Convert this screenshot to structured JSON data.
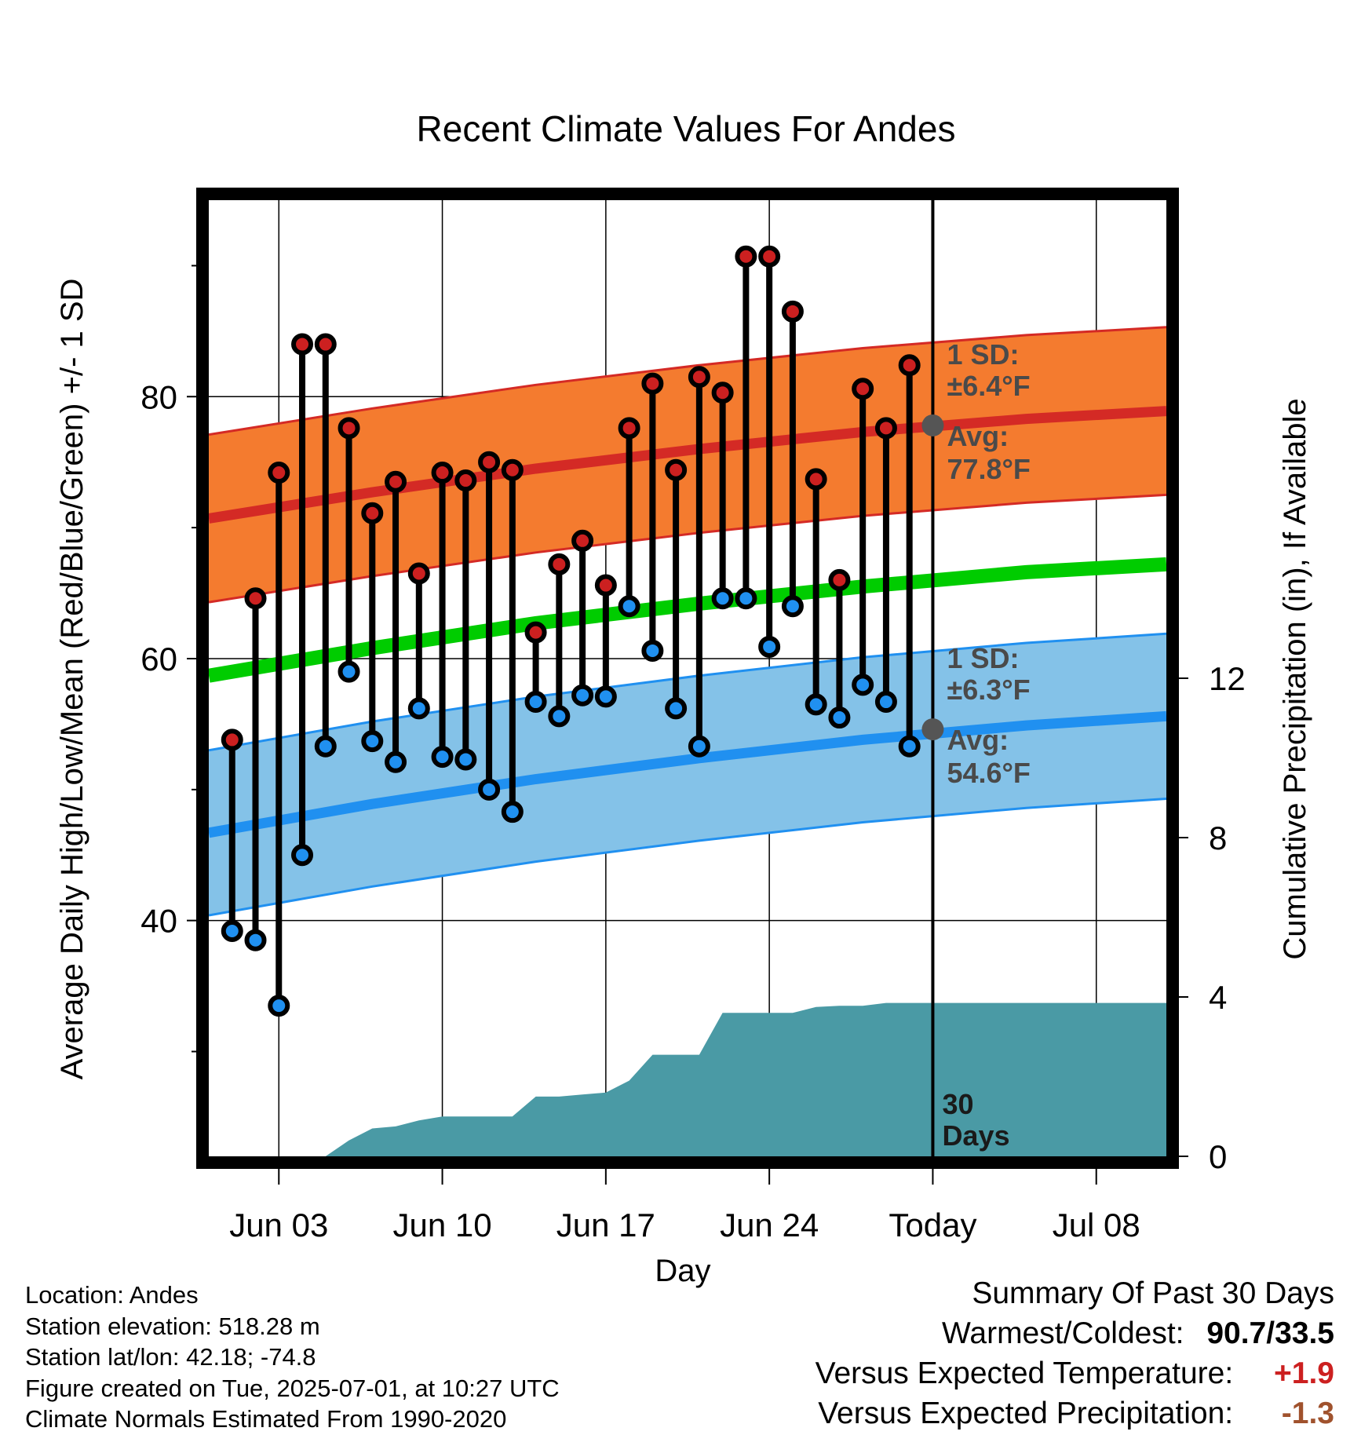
{
  "chart_data": {
    "type": "line",
    "title": "Recent Climate Values For Andes",
    "xlabel": "Day",
    "ylabel": "Average Daily High/Low/Mean (Red/Blue/Green) +/- 1 SD",
    "y2label": "Cumulative Precipitation (in), If Available",
    "x_range": [
      "2025-05-31",
      "2025-07-11"
    ],
    "ylim": [
      22,
      95
    ],
    "y2lim": [
      0,
      24
    ],
    "x_ticks": [
      {
        "date": "2025-06-03",
        "label": "Jun 03"
      },
      {
        "date": "2025-06-10",
        "label": "Jun 10"
      },
      {
        "date": "2025-06-17",
        "label": "Jun 17"
      },
      {
        "date": "2025-06-24",
        "label": "Jun 24"
      },
      {
        "date": "2025-07-01",
        "label": "Today"
      },
      {
        "date": "2025-07-08",
        "label": "Jul 08"
      }
    ],
    "y_ticks": [
      {
        "value": 40,
        "label": "40"
      },
      {
        "value": 60,
        "label": "60"
      },
      {
        "value": 80,
        "label": "80"
      }
    ],
    "y_minor_ticks": [
      30,
      50,
      70,
      90
    ],
    "y2_ticks": [
      {
        "value": 0,
        "label": "0"
      },
      {
        "value": 4,
        "label": "4"
      },
      {
        "value": 8,
        "label": "8"
      },
      {
        "value": 12,
        "label": "12"
      }
    ],
    "grid": true,
    "today": "2025-07-01",
    "normals": {
      "dates": [
        "2025-05-31",
        "2025-06-07",
        "2025-06-14",
        "2025-06-21",
        "2025-06-28",
        "2025-07-05",
        "2025-07-11"
      ],
      "high_mean": [
        70.7,
        72.7,
        74.5,
        76.0,
        77.3,
        78.3,
        78.9
      ],
      "high_sd": 6.4,
      "low_mean": [
        46.7,
        48.9,
        50.8,
        52.4,
        53.8,
        54.9,
        55.6
      ],
      "low_sd": 6.3,
      "mean": [
        58.7,
        60.8,
        62.7,
        64.2,
        65.5,
        66.6,
        67.2
      ]
    },
    "observations": {
      "dates": [
        "2025-06-01",
        "2025-06-02",
        "2025-06-03",
        "2025-06-04",
        "2025-06-05",
        "2025-06-06",
        "2025-06-07",
        "2025-06-08",
        "2025-06-09",
        "2025-06-10",
        "2025-06-11",
        "2025-06-12",
        "2025-06-13",
        "2025-06-14",
        "2025-06-15",
        "2025-06-16",
        "2025-06-17",
        "2025-06-18",
        "2025-06-19",
        "2025-06-20",
        "2025-06-21",
        "2025-06-22",
        "2025-06-23",
        "2025-06-24",
        "2025-06-25",
        "2025-06-26",
        "2025-06-27",
        "2025-06-28",
        "2025-06-29",
        "2025-06-30"
      ],
      "high": [
        53.8,
        64.6,
        74.2,
        84.0,
        84.0,
        77.6,
        71.1,
        73.5,
        66.5,
        74.2,
        73.6,
        75.0,
        74.4,
        62.0,
        67.2,
        69.0,
        65.6,
        77.6,
        81.0,
        74.4,
        81.5,
        80.3,
        90.7,
        90.7,
        86.5,
        73.7,
        66.0,
        80.6,
        77.6,
        82.4
      ],
      "low": [
        39.2,
        38.5,
        33.5,
        45.0,
        53.3,
        59.0,
        53.7,
        52.1,
        56.2,
        52.5,
        52.3,
        50.0,
        48.3,
        56.7,
        55.6,
        57.2,
        57.1,
        64.0,
        60.6,
        56.2,
        53.3,
        64.6,
        64.6,
        60.9,
        64.0,
        56.5,
        55.5,
        58.0,
        56.7,
        53.3
      ]
    },
    "precipitation": {
      "dates": [
        "2025-05-31",
        "2025-06-01",
        "2025-06-02",
        "2025-06-03",
        "2025-06-04",
        "2025-06-05",
        "2025-06-06",
        "2025-06-07",
        "2025-06-08",
        "2025-06-09",
        "2025-06-10",
        "2025-06-11",
        "2025-06-12",
        "2025-06-13",
        "2025-06-14",
        "2025-06-15",
        "2025-06-16",
        "2025-06-17",
        "2025-06-18",
        "2025-06-19",
        "2025-06-20",
        "2025-06-21",
        "2025-06-22",
        "2025-06-23",
        "2025-06-24",
        "2025-06-25",
        "2025-06-26",
        "2025-06-27",
        "2025-06-28",
        "2025-06-29",
        "2025-06-30",
        "2025-07-11"
      ],
      "cumulative": [
        0,
        0,
        0,
        0,
        0,
        0,
        0.4,
        0.7,
        0.75,
        0.9,
        1.0,
        1.0,
        1.0,
        1.0,
        1.5,
        1.5,
        1.55,
        1.6,
        1.9,
        2.55,
        2.55,
        2.55,
        3.6,
        3.6,
        3.6,
        3.6,
        3.75,
        3.78,
        3.78,
        3.85,
        3.85,
        3.85
      ]
    },
    "annotations": {
      "high_sd_label": "1 SD:",
      "high_sd_value": "±6.4°F",
      "high_avg_label": "Avg:",
      "high_avg_value": "77.8°F",
      "high_avg_marker": 77.8,
      "low_sd_label": "1 SD:",
      "low_sd_value": "±6.3°F",
      "low_avg_label": "Avg:",
      "low_avg_value": "54.6°F",
      "low_avg_marker": 54.6,
      "days_label_1": "30",
      "days_label_2": "Days"
    },
    "colors": {
      "high_band": "#f47b2f",
      "high_line": "#d42a25",
      "low_band": "#84c2e8",
      "low_line": "#2090f0",
      "mean_line": "#00cc00",
      "precip": "#4a9aa5",
      "high_dot": "#cc2020",
      "low_dot": "#2090f0",
      "marker": "#555555",
      "warm_value": "#cc2020",
      "precip_value": "#a0522d"
    }
  },
  "meta": {
    "location": "Location: Andes",
    "elevation": "Station elevation: 518.28 m",
    "latlon": "Station lat/lon: 42.18; -74.8",
    "created": "Figure created on Tue, 2025-07-01, at 10:27 UTC",
    "normals": "Climate Normals Estimated From 1990-2020"
  },
  "summary": {
    "title": "Summary Of Past 30 Days",
    "warmest_label": "Warmest/Coldest:",
    "warmest_value": "90.7/33.5",
    "temp_label": "Versus Expected Temperature:",
    "temp_value": "+1.9",
    "precip_label": "Versus Expected Precipitation:",
    "precip_value": "-1.3"
  }
}
